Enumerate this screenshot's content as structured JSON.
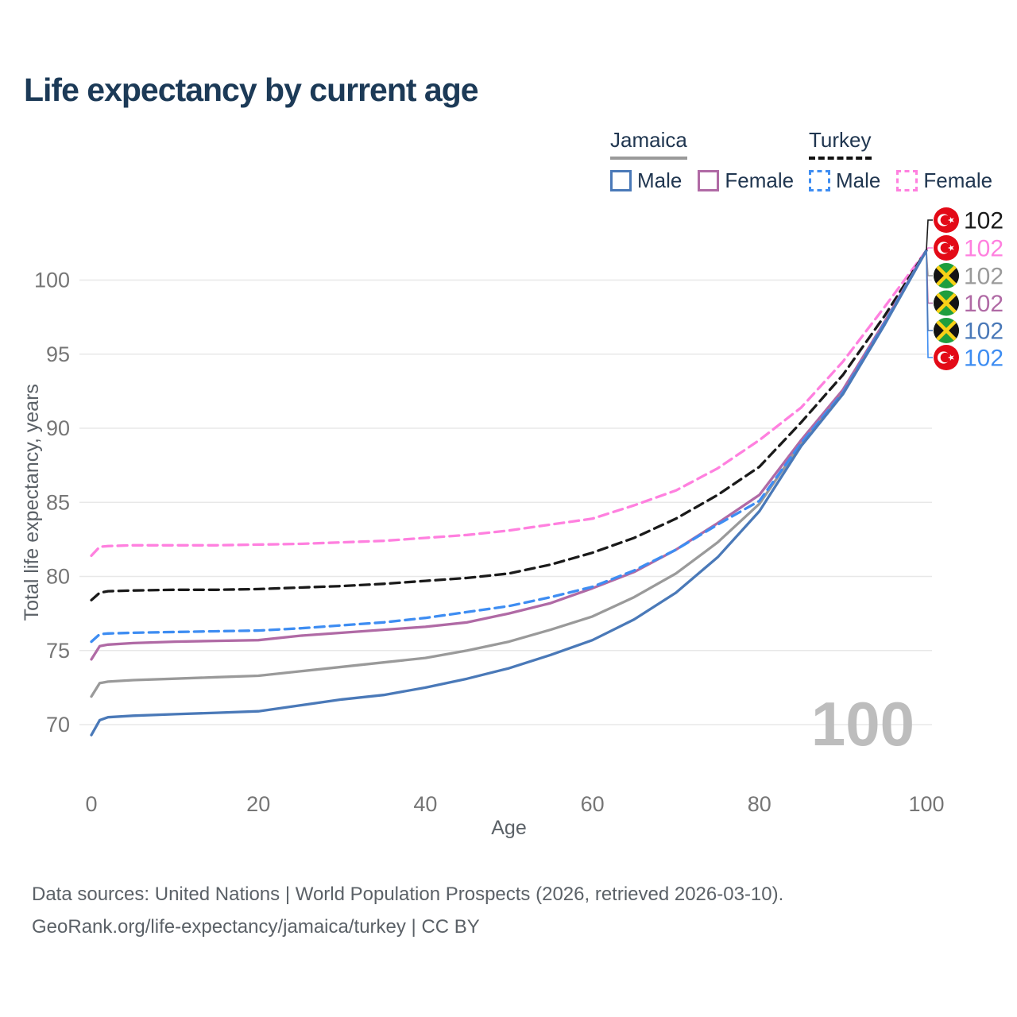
{
  "title": "Life expectancy by current age",
  "legend": {
    "groups": [
      {
        "name": "Jamaica",
        "underline": "solid",
        "underline_color": "#9a9a9a",
        "items": [
          {
            "label": "Male",
            "color": "#4a79b8",
            "dash": "solid"
          },
          {
            "label": "Female",
            "color": "#b06aa5",
            "dash": "solid"
          }
        ]
      },
      {
        "name": "Turkey",
        "underline": "dashed",
        "underline_color": "#111111",
        "items": [
          {
            "label": "Male",
            "color": "#3e8df2",
            "dash": "dashed"
          },
          {
            "label": "Female",
            "color": "#ff80df",
            "dash": "dashed"
          }
        ]
      }
    ]
  },
  "chart_data": {
    "type": "line",
    "title": "Life expectancy by current age",
    "xlabel": "Age",
    "ylabel": "Total life expectancy, years",
    "x_ticks": [
      0,
      20,
      40,
      60,
      80,
      100
    ],
    "y_ticks": [
      70,
      75,
      80,
      85,
      90,
      95,
      100
    ],
    "xlim": [
      0,
      100
    ],
    "ylim": [
      68.8,
      103.5
    ],
    "grid": "horizontal",
    "legend_position": "top-right",
    "frame_label": "100",
    "ages": [
      0,
      1,
      2,
      5,
      10,
      15,
      20,
      25,
      30,
      35,
      40,
      45,
      50,
      55,
      60,
      65,
      70,
      75,
      80,
      85,
      90,
      95,
      100
    ],
    "series": [
      {
        "name": "Turkey Female",
        "country": "Turkey",
        "sex": "Female",
        "color": "#ff80df",
        "dash": "dashed",
        "flag": "turkey",
        "values": [
          81.4,
          82.0,
          82.05,
          82.1,
          82.1,
          82.1,
          82.15,
          82.2,
          82.3,
          82.4,
          82.6,
          82.8,
          83.1,
          83.5,
          83.9,
          84.8,
          85.8,
          87.3,
          89.2,
          91.4,
          94.5,
          98.2,
          102
        ],
        "end_value": "102",
        "end_label_row": 1
      },
      {
        "name": "Turkey Overall",
        "country": "Turkey",
        "sex": "Both",
        "color": "#1a1a1a",
        "dash": "dashed",
        "flag": "turkey",
        "values": [
          78.4,
          78.9,
          79.0,
          79.05,
          79.1,
          79.1,
          79.15,
          79.25,
          79.35,
          79.5,
          79.7,
          79.9,
          80.2,
          80.8,
          81.6,
          82.6,
          83.9,
          85.5,
          87.4,
          90.4,
          93.6,
          97.6,
          102
        ],
        "end_value": "102",
        "end_label_row": 0
      },
      {
        "name": "Jamaica Overall",
        "country": "Jamaica",
        "sex": "Both",
        "color": "#9a9a9a",
        "dash": "solid",
        "flag": "jamaica",
        "values": [
          71.9,
          72.8,
          72.9,
          73.0,
          73.1,
          73.2,
          73.3,
          73.6,
          73.9,
          74.2,
          74.5,
          75.0,
          75.6,
          76.4,
          77.3,
          78.6,
          80.2,
          82.3,
          84.9,
          89.0,
          92.5,
          97.1,
          102
        ],
        "end_value": "102",
        "end_label_row": 2
      },
      {
        "name": "Jamaica Female",
        "country": "Jamaica",
        "sex": "Female",
        "color": "#b06aa5",
        "dash": "solid",
        "flag": "jamaica",
        "values": [
          74.4,
          75.3,
          75.4,
          75.5,
          75.6,
          75.65,
          75.7,
          76.0,
          76.2,
          76.4,
          76.6,
          76.9,
          77.5,
          78.2,
          79.2,
          80.3,
          81.8,
          83.6,
          85.5,
          89.2,
          92.6,
          97.2,
          102
        ],
        "end_value": "102",
        "end_label_row": 3
      },
      {
        "name": "Turkey Male",
        "country": "Turkey",
        "sex": "Male",
        "color": "#3e8df2",
        "dash": "dashed",
        "flag": "turkey",
        "values": [
          75.6,
          76.1,
          76.15,
          76.2,
          76.25,
          76.3,
          76.35,
          76.5,
          76.7,
          76.9,
          77.2,
          77.6,
          78.0,
          78.6,
          79.3,
          80.4,
          81.8,
          83.5,
          85.1,
          89.0,
          92.4,
          97.1,
          102
        ],
        "end_value": "102",
        "end_label_row": 5
      },
      {
        "name": "Jamaica Male",
        "country": "Jamaica",
        "sex": "Male",
        "color": "#4a79b8",
        "dash": "solid",
        "flag": "jamaica",
        "values": [
          69.3,
          70.3,
          70.5,
          70.6,
          70.7,
          70.8,
          70.9,
          71.3,
          71.7,
          72.0,
          72.5,
          73.1,
          73.8,
          74.7,
          75.7,
          77.1,
          78.9,
          81.3,
          84.4,
          88.8,
          92.3,
          97.0,
          102
        ],
        "end_value": "102",
        "end_label_row": 4
      }
    ],
    "flag_colors": {
      "turkey_red": "#e30a17",
      "jamaica_green": "#1e9e3e",
      "jamaica_gold": "#f7d117",
      "jamaica_black": "#141414"
    }
  },
  "footer": {
    "line1": "Data sources: United Nations | World Population Prospects (2026, retrieved 2026-03-10).",
    "line2": "GeoRank.org/life-expectancy/jamaica/turkey | CC BY"
  }
}
